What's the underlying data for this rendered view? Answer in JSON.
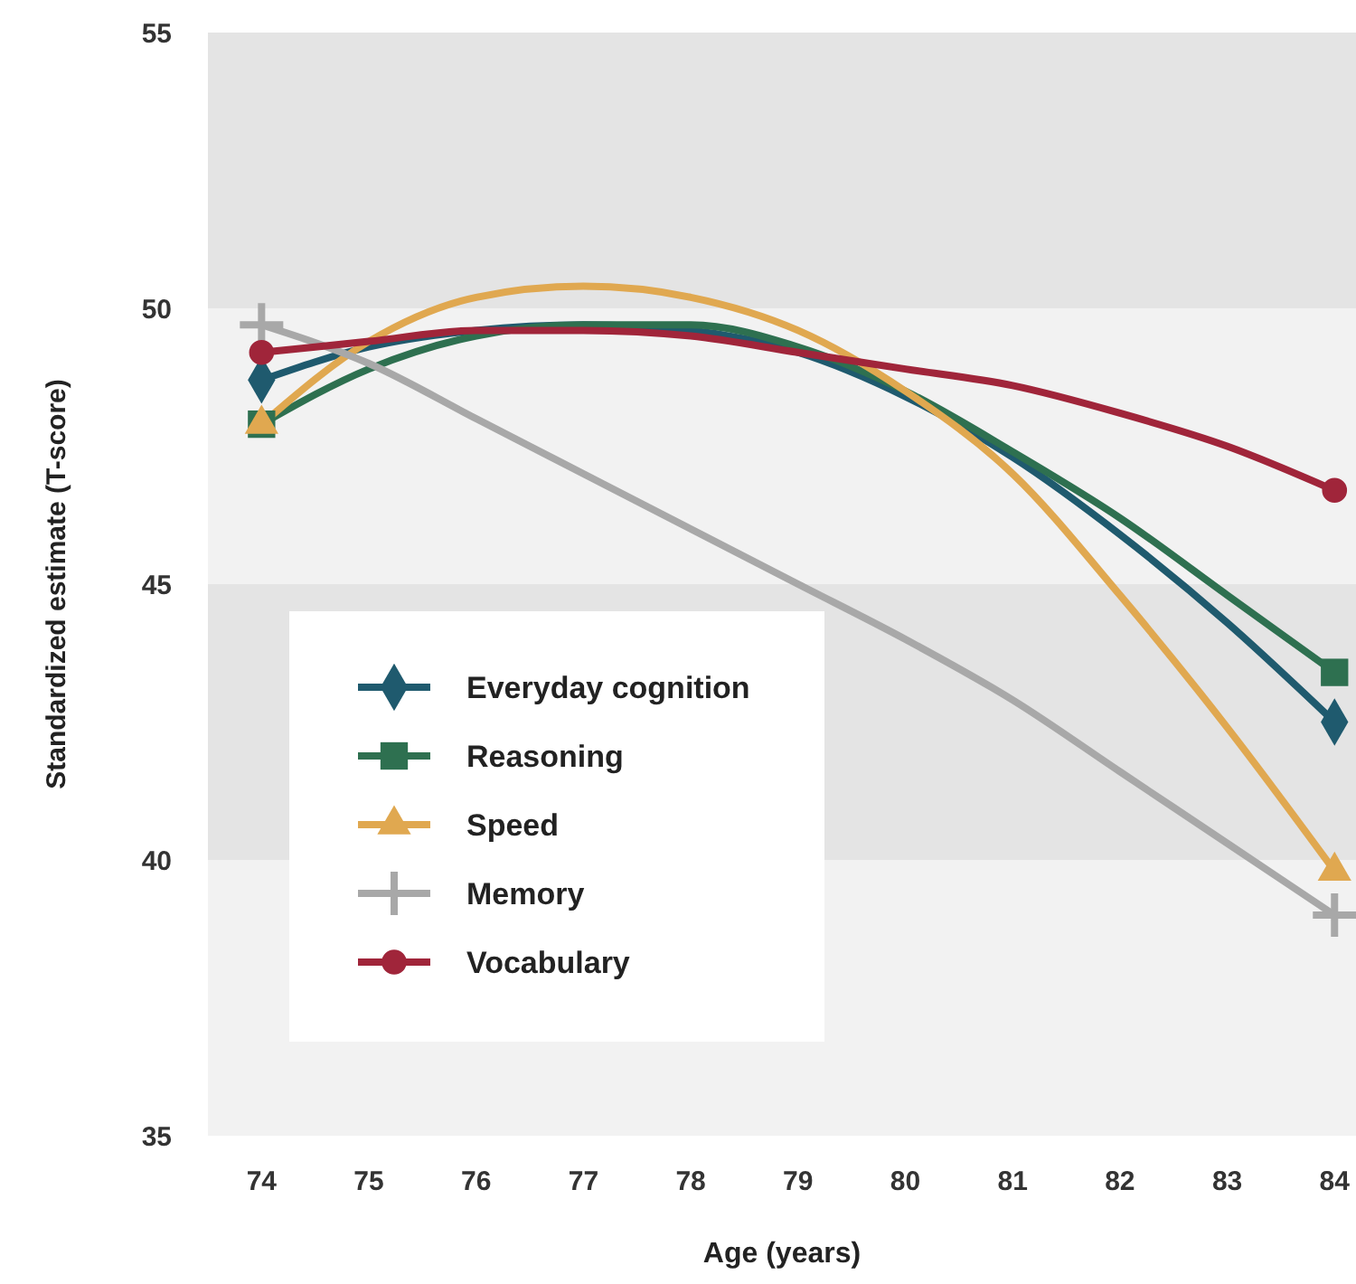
{
  "chart_data": {
    "type": "line",
    "xlabel": "Age (years)",
    "ylabel": "Standardized estimate (T-score)",
    "x": [
      74,
      75,
      76,
      77,
      78,
      79,
      80,
      81,
      82,
      83,
      84
    ],
    "xlim": [
      73.5,
      84.2
    ],
    "xticks": [
      74,
      75,
      76,
      77,
      78,
      79,
      80,
      81,
      82,
      83,
      84
    ],
    "ylim": [
      35,
      55
    ],
    "yticks": [
      35,
      40,
      45,
      50,
      55
    ],
    "grid": false,
    "legend": "bottom left",
    "line_style": "solid",
    "bands": [
      {
        "axis": "y",
        "from": 40,
        "to": 45,
        "color": "#e4e4e4"
      },
      {
        "axis": "y",
        "from": 50,
        "to": 55,
        "color": "#e4e4e4"
      }
    ],
    "series": [
      {
        "color": "#1f5a6e",
        "marker": "none",
        "values": [
          48.7,
          49.3,
          49.6,
          49.7,
          49.6,
          49.2,
          48.4,
          47.3,
          45.9,
          44.3,
          42.5
        ]
      },
      {
        "color": "#2e7050",
        "marker": "none",
        "values": [
          47.9,
          48.9,
          49.5,
          49.7,
          49.7,
          49.3,
          48.5,
          47.4,
          46.2,
          44.8,
          43.4
        ]
      },
      {
        "color": "#e0a850",
        "marker": "none",
        "values": [
          47.9,
          49.4,
          50.2,
          50.4,
          50.2,
          49.6,
          48.5,
          47.0,
          44.8,
          42.4,
          39.8
        ]
      },
      {
        "color": "#a8a8a8",
        "marker": "none",
        "values": [
          49.7,
          49.0,
          48.0,
          47.0,
          46.0,
          45.0,
          44.0,
          42.9,
          41.6,
          40.3,
          39.0
        ]
      },
      {
        "color": "#a0253a",
        "marker": "none",
        "values": [
          49.2,
          49.4,
          49.6,
          49.6,
          49.5,
          49.2,
          48.9,
          48.6,
          48.1,
          47.5,
          46.7
        ]
      },
      {
        "type": "scatter",
        "name": "Everyday cognition",
        "color": "#1f5a6e",
        "marker": "diamond",
        "values": [
          48.7,
          null,
          null,
          null,
          null,
          null,
          null,
          null,
          null,
          null,
          42.5
        ]
      },
      {
        "type": "scatter",
        "name": "Reasoning",
        "color": "#2e7050",
        "marker": "square",
        "values": [
          47.9,
          null,
          null,
          null,
          null,
          null,
          null,
          null,
          null,
          null,
          43.4
        ]
      },
      {
        "type": "scatter",
        "name": "Speed",
        "color": "#e0a850",
        "marker": "triangle",
        "values": [
          47.9,
          null,
          null,
          null,
          null,
          null,
          null,
          null,
          null,
          null,
          39.8
        ]
      },
      {
        "type": "scatter",
        "name": "Memory",
        "color": "#a8a8a8",
        "marker": "cross",
        "values": [
          49.7,
          null,
          null,
          null,
          null,
          null,
          null,
          null,
          null,
          null,
          39.0
        ]
      },
      {
        "type": "scatter",
        "name": "Vocabulary",
        "color": "#a0253a",
        "marker": "circle",
        "values": [
          49.2,
          null,
          null,
          null,
          null,
          null,
          null,
          null,
          null,
          null,
          46.7
        ]
      }
    ]
  }
}
